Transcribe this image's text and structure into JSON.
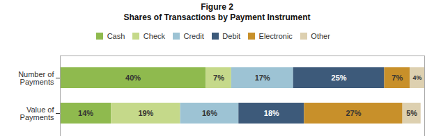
{
  "chart_data": {
    "type": "bar",
    "orientation": "horizontal",
    "stacked": true,
    "title": "Figure 2",
    "subtitle": "Shares of Transactions by Payment Instrument",
    "categories": [
      "Number of\nPayments",
      "Value of\nPayments"
    ],
    "series": [
      {
        "name": "Cash",
        "color": "#8fba4e",
        "values": [
          40,
          14
        ],
        "value_labels": [
          "40%",
          "14%"
        ]
      },
      {
        "name": "Check",
        "color": "#c5d98a",
        "values": [
          7,
          19
        ],
        "value_labels": [
          "7%",
          "19%"
        ]
      },
      {
        "name": "Credit",
        "color": "#9dc3d4",
        "values": [
          17,
          16
        ],
        "value_labels": [
          "17%",
          "16%"
        ]
      },
      {
        "name": "Debit",
        "color": "#3d5a7a",
        "values": [
          25,
          18
        ],
        "value_labels": [
          "25%",
          "18%"
        ]
      },
      {
        "name": "Electronic",
        "color": "#c8902a",
        "values": [
          7,
          27
        ],
        "value_labels": [
          "7%",
          "27%"
        ]
      },
      {
        "name": "Other",
        "color": "#ddd0b0",
        "values": [
          4,
          5
        ],
        "value_labels": [
          "4%",
          "5%"
        ]
      }
    ],
    "xlim": [
      0,
      100
    ],
    "data_labels": true,
    "tick_labels": "y",
    "grid": false,
    "legend": "top"
  }
}
